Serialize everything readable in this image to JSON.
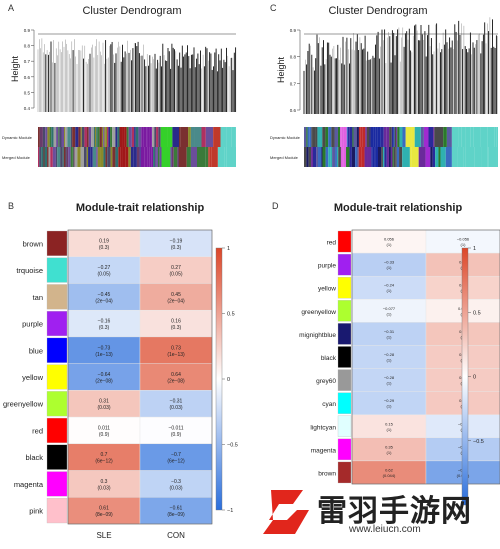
{
  "panels": {
    "A": {
      "label": "A",
      "title": "Cluster Dendrogram",
      "ylabel": "Height",
      "yticks": [
        "0.9",
        "0.8",
        "0.7",
        "0.6",
        "0.5",
        "0.4"
      ],
      "rows": [
        "Dynamic Module",
        "Merged Module"
      ]
    },
    "C": {
      "label": "C",
      "title": "Cluster Dendrogram",
      "ylabel": "Height",
      "yticks": [
        "0.9",
        "0.8",
        "0.7",
        "0.6"
      ],
      "rows": [
        "Dynamic Module",
        "Merged Module"
      ]
    },
    "B": {
      "label": "B",
      "title": "Module-trait relationship",
      "columns": [
        "SLE",
        "CON"
      ],
      "scale": [
        "1",
        "0.5",
        "0",
        "−0.5",
        "−1"
      ],
      "rows": [
        {
          "name": "brown",
          "color": "#8B2323",
          "v": [
            0.19,
            -0.19
          ],
          "t": [
            "0.19\n(0.3)",
            "−0.19\n(0.3)"
          ]
        },
        {
          "name": "trquoise",
          "color": "#40E0D0",
          "v": [
            -0.27,
            0.27
          ],
          "t": [
            "−0.27\n(0.05)",
            "0.27\n(0.05)"
          ]
        },
        {
          "name": "tan",
          "color": "#D2B48C",
          "v": [
            -0.45,
            0.45
          ],
          "t": [
            "−0.45\n(2e−04)",
            "0.45\n(2e−04)"
          ]
        },
        {
          "name": "purple",
          "color": "#A020F0",
          "v": [
            -0.16,
            0.16
          ],
          "t": [
            "−0.16\n(0.3)",
            "0.16\n(0.3)"
          ]
        },
        {
          "name": "blue",
          "color": "#0000FF",
          "v": [
            -0.73,
            0.73
          ],
          "t": [
            "−0.73\n(1e−13)",
            "0.73\n(1e−13)"
          ]
        },
        {
          "name": "yellow",
          "color": "#FFFF00",
          "v": [
            -0.64,
            0.64
          ],
          "t": [
            "−0.64\n(2e−08)",
            "0.64\n(2e−08)"
          ]
        },
        {
          "name": "greenyellow",
          "color": "#ADFF2F",
          "v": [
            0.31,
            -0.31
          ],
          "t": [
            "0.31\n(0.03)",
            "−0.31\n(0.03)"
          ]
        },
        {
          "name": "red",
          "color": "#FF0000",
          "v": [
            0.011,
            -0.011
          ],
          "t": [
            "0.011\n(0.9)",
            "−0.011\n(0.9)"
          ]
        },
        {
          "name": "black",
          "color": "#000000",
          "v": [
            0.7,
            -0.7
          ],
          "t": [
            "0.7\n(6e−12)",
            "−0.7\n(6e−12)"
          ]
        },
        {
          "name": "magenta",
          "color": "#FF00FF",
          "v": [
            0.3,
            -0.3
          ],
          "t": [
            "0.3\n(0.03)",
            "−0.3\n(0.03)"
          ]
        },
        {
          "name": "pink",
          "color": "#FFC0CB",
          "v": [
            0.61,
            -0.61
          ],
          "t": [
            "0.61\n(8e−09)",
            "−0.61\n(8e−09)"
          ]
        }
      ]
    },
    "D": {
      "label": "D",
      "title": "Module-trait relationship",
      "scale": [
        "1",
        "0.5",
        "0",
        "−0.5"
      ],
      "rows": [
        {
          "name": "red",
          "color": "#FF0000",
          "v": [
            0.056,
            -0.056
          ],
          "t": [
            "0.056\n(1)",
            "−0.056\n(1)"
          ]
        },
        {
          "name": "purple",
          "color": "#A020F0",
          "v": [
            -0.33,
            0.33
          ],
          "t": [
            "−0.33\n(1)",
            "0.33\n(1)"
          ]
        },
        {
          "name": "yellow",
          "color": "#FFFF00",
          "v": [
            -0.24,
            0.24
          ],
          "t": [
            "−0.24\n(1)",
            "0.24\n(1)"
          ]
        },
        {
          "name": "greenyellow",
          "color": "#ADFF2F",
          "v": [
            -0.077,
            0.077
          ],
          "t": [
            "−0.077\n(1)",
            "0.077\n(1)"
          ]
        },
        {
          "name": "mignightblue",
          "color": "#191970",
          "v": [
            -0.31,
            0.31
          ],
          "t": [
            "−0.31\n(1)",
            "0.31\n(1)"
          ]
        },
        {
          "name": "black",
          "color": "#000000",
          "v": [
            -0.28,
            0.28
          ],
          "t": [
            "−0.28\n(1)",
            "0.28\n(1)"
          ]
        },
        {
          "name": "grey60",
          "color": "#999999",
          "v": [
            -0.28,
            0.28
          ],
          "t": [
            "−0.28\n(1)",
            "0.28\n(1)"
          ]
        },
        {
          "name": "cyan",
          "color": "#00FFFF",
          "v": [
            -0.29,
            0.29
          ],
          "t": [
            "−0.29\n(1)",
            "0.29\n(1)"
          ]
        },
        {
          "name": "lightcyan",
          "color": "#E0FFFF",
          "v": [
            0.15,
            -0.15
          ],
          "t": [
            "0.15\n(1)",
            "−0.15\n(1)"
          ]
        },
        {
          "name": "magenta",
          "color": "#FF00FF",
          "v": [
            0.35,
            -0.35
          ],
          "t": [
            "0.35\n(1)",
            "−0.35\n(1)"
          ]
        },
        {
          "name": "brown",
          "color": "#A52A2A",
          "v": [
            0.62,
            -0.62
          ],
          "t": [
            "0.62\n(0.044)",
            "−0.62\n(0.044)"
          ]
        }
      ]
    }
  },
  "watermark": {
    "text": "雷羽手游网",
    "url": "www.leiucn.com",
    "logo_color": "#E1261C"
  }
}
